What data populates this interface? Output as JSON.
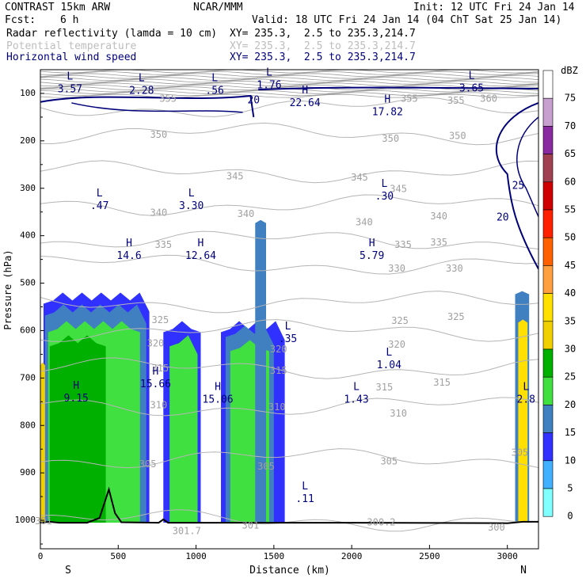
{
  "header": {
    "title": "CONTRAST 15km ARW",
    "center": "NCAR/MMM",
    "init": "Init: 12 UTC Fri 24 Jan 14",
    "fcst_label": "Fcst:",
    "fcst_value": "6 h",
    "valid": "Valid: 18 UTC Fri 24 Jan 14 (04 ChT Sat 25 Jan 14)",
    "fields": [
      {
        "name": "Radar reflectivity (lamda = 10 cm)",
        "xy": "XY= 235.3,  2.5 to 235.3,214.7",
        "color": "#000000"
      },
      {
        "name": "Potential temperature",
        "xy": "XY= 235.3,  2.5 to 235.3,214.7",
        "color": "#bdbdbd"
      },
      {
        "name": "Horizontal wind speed",
        "xy": "XY= 235.3,  2.5 to 235.3,214.7",
        "color": "#00007a"
      }
    ]
  },
  "chart_data": {
    "type": "cross-section",
    "xlabel": "Distance (km)",
    "ylabel": "Pressure (hPa)",
    "xlim": [
      0,
      3200
    ],
    "ylim": [
      1060,
      50
    ],
    "xticks": [
      0,
      500,
      1000,
      1500,
      2000,
      2500,
      3000
    ],
    "yticks": [
      100,
      200,
      300,
      400,
      500,
      600,
      700,
      800,
      900,
      1000
    ],
    "x_end_labels": {
      "left": "S",
      "right": "N"
    },
    "colorbar": {
      "unit": "dBZ",
      "levels": [
        75,
        70,
        65,
        60,
        55,
        50,
        45,
        40,
        35,
        30,
        25,
        20,
        15,
        10,
        5,
        0
      ],
      "colors": [
        "#ffffff",
        "#c8a0d0",
        "#8a2aa0",
        "#a04050",
        "#d00000",
        "#ff2000",
        "#ff6000",
        "#ffa040",
        "#ffe000",
        "#f0d000",
        "#00b000",
        "#40e040",
        "#4080c0",
        "#3030ff",
        "#40b0ff",
        "#80ffff"
      ]
    },
    "theta_contours": [
      {
        "value": "355",
        "p": 130
      },
      {
        "value": "350",
        "p": 185
      },
      {
        "value": "345",
        "p": 265
      },
      {
        "value": "340",
        "p": 335
      },
      {
        "value": "335",
        "p": 410
      },
      {
        "value": "330",
        "p": 460
      },
      {
        "value": "325",
        "p": 540
      },
      {
        "value": "320",
        "p": 600
      },
      {
        "value": "315",
        "p": 680
      },
      {
        "value": "310",
        "p": 760
      },
      {
        "value": "305",
        "p": 870
      },
      {
        "value": "300",
        "p": 1000
      }
    ],
    "theta_labels": [
      {
        "text": "355",
        "x": 820,
        "p": 112
      },
      {
        "text": "355",
        "x": 2370,
        "p": 112
      },
      {
        "text": "355",
        "x": 2670,
        "p": 116
      },
      {
        "text": "360",
        "x": 2880,
        "p": 112
      },
      {
        "text": "350",
        "x": 760,
        "p": 188
      },
      {
        "text": "350",
        "x": 2250,
        "p": 196
      },
      {
        "text": "350",
        "x": 2680,
        "p": 190
      },
      {
        "text": "345",
        "x": 1250,
        "p": 275
      },
      {
        "text": "345",
        "x": 2050,
        "p": 278
      },
      {
        "text": "345",
        "x": 2300,
        "p": 302
      },
      {
        "text": "340",
        "x": 760,
        "p": 352
      },
      {
        "text": "340",
        "x": 1320,
        "p": 355
      },
      {
        "text": "340",
        "x": 2080,
        "p": 372
      },
      {
        "text": "340",
        "x": 2560,
        "p": 360
      },
      {
        "text": "335",
        "x": 790,
        "p": 420
      },
      {
        "text": "335",
        "x": 2330,
        "p": 420
      },
      {
        "text": "335",
        "x": 2560,
        "p": 415
      },
      {
        "text": "330",
        "x": 2290,
        "p": 470
      },
      {
        "text": "330",
        "x": 2660,
        "p": 470
      },
      {
        "text": "325",
        "x": 770,
        "p": 578
      },
      {
        "text": "325",
        "x": 2310,
        "p": 580
      },
      {
        "text": "325",
        "x": 2670,
        "p": 572
      },
      {
        "text": "320",
        "x": 740,
        "p": 628
      },
      {
        "text": "320",
        "x": 1530,
        "p": 640
      },
      {
        "text": "320",
        "x": 2290,
        "p": 630
      },
      {
        "text": "315",
        "x": 770,
        "p": 680
      },
      {
        "text": "315",
        "x": 1530,
        "p": 685
      },
      {
        "text": "315",
        "x": 2210,
        "p": 720
      },
      {
        "text": "315",
        "x": 2580,
        "p": 710
      },
      {
        "text": "310",
        "x": 760,
        "p": 758
      },
      {
        "text": "310",
        "x": 1520,
        "p": 762
      },
      {
        "text": "310",
        "x": 2300,
        "p": 775
      },
      {
        "text": "305",
        "x": 690,
        "p": 882
      },
      {
        "text": "305",
        "x": 1450,
        "p": 887
      },
      {
        "text": "305",
        "x": 2240,
        "p": 876
      },
      {
        "text": "305",
        "x": 3080,
        "p": 858
      },
      {
        "text": "301.7",
        "x": 940,
        "p": 1023
      },
      {
        "text": "301",
        "x": 1350,
        "p": 1012
      },
      {
        "text": "300.2",
        "x": 2190,
        "p": 1005
      },
      {
        "text": "300",
        "x": 2930,
        "p": 1016
      },
      {
        "text": "301",
        "x": 20,
        "p": 1002
      }
    ],
    "wind_contours": [
      {
        "value": "20"
      },
      {
        "value": "25"
      }
    ],
    "wind_labels": [
      {
        "text": "20",
        "x": 1370,
        "p": 115
      },
      {
        "text": "20",
        "x": 2970,
        "p": 362
      },
      {
        "text": "25",
        "x": 3070,
        "p": 295
      }
    ],
    "extrema": [
      {
        "kind": "L",
        "value": "3.57",
        "x": 190,
        "p": 78
      },
      {
        "kind": "L",
        "value": "2.28",
        "x": 650,
        "p": 82
      },
      {
        "kind": "L",
        "value": ".56",
        "x": 1120,
        "p": 82
      },
      {
        "kind": "L",
        "value": "1.76",
        "x": 1470,
        "p": 70
      },
      {
        "kind": "L",
        "value": "3.65",
        "x": 2770,
        "p": 77
      },
      {
        "kind": "H",
        "value": "22.64",
        "x": 1700,
        "p": 108
      },
      {
        "kind": "H",
        "value": "17.82",
        "x": 2230,
        "p": 127
      },
      {
        "kind": "L",
        "value": ".47",
        "x": 380,
        "p": 325
      },
      {
        "kind": "L",
        "value": "3.30",
        "x": 970,
        "p": 325
      },
      {
        "kind": "L",
        "value": ".30",
        "x": 2210,
        "p": 305
      },
      {
        "kind": "H",
        "value": "14.6",
        "x": 570,
        "p": 430
      },
      {
        "kind": "H",
        "value": "12.64",
        "x": 1030,
        "p": 430
      },
      {
        "kind": "H",
        "value": "5.79",
        "x": 2130,
        "p": 430
      },
      {
        "kind": "L",
        "value": ".35",
        "x": 1590,
        "p": 605
      },
      {
        "kind": "L",
        "value": "1.04",
        "x": 2240,
        "p": 660
      },
      {
        "kind": "H",
        "value": "15.66",
        "x": 740,
        "p": 700
      },
      {
        "kind": "H",
        "value": "9.15",
        "x": 230,
        "p": 730
      },
      {
        "kind": "H",
        "value": "15.06",
        "x": 1140,
        "p": 733
      },
      {
        "kind": "L",
        "value": "1.43",
        "x": 2030,
        "p": 733
      },
      {
        "kind": "L",
        "value": "2.8",
        "x": 3120,
        "p": 733
      },
      {
        "kind": "L",
        "value": ".11",
        "x": 1700,
        "p": 942
      }
    ],
    "reflectivity_regions": [
      {
        "x0": 20,
        "x1": 700,
        "ptop": 520,
        "dbz": 10
      },
      {
        "x0": 30,
        "x1": 680,
        "ptop": 545,
        "dbz": 15
      },
      {
        "x0": 50,
        "x1": 640,
        "ptop": 580,
        "dbz": 20
      },
      {
        "x0": 60,
        "x1": 420,
        "ptop": 610,
        "dbz": 25
      },
      {
        "x0": 790,
        "x1": 1030,
        "ptop": 580,
        "dbz": 10
      },
      {
        "x0": 830,
        "x1": 1010,
        "ptop": 610,
        "dbz": 20
      },
      {
        "x0": 1160,
        "x1": 1570,
        "ptop": 580,
        "dbz": 10
      },
      {
        "x0": 1190,
        "x1": 1500,
        "ptop": 590,
        "dbz": 15
      },
      {
        "x0": 1220,
        "x1": 1470,
        "ptop": 620,
        "dbz": 20
      },
      {
        "x0": 1380,
        "x1": 1450,
        "ptop": 350,
        "dbz": 15
      },
      {
        "x0": 3050,
        "x1": 3140,
        "ptop": 500,
        "dbz": 15
      },
      {
        "x0": 3070,
        "x1": 3130,
        "ptop": 560,
        "dbz": 35
      },
      {
        "x0": 0,
        "x1": 30,
        "ptop": 650,
        "dbz": 30
      }
    ],
    "terrain": [
      {
        "x": 0,
        "p": 1005
      },
      {
        "x": 60,
        "p": 1003
      },
      {
        "x": 120,
        "p": 1005
      },
      {
        "x": 300,
        "p": 1005
      },
      {
        "x": 380,
        "p": 995
      },
      {
        "x": 440,
        "p": 935
      },
      {
        "x": 480,
        "p": 985
      },
      {
        "x": 520,
        "p": 1004
      },
      {
        "x": 760,
        "p": 1005
      },
      {
        "x": 790,
        "p": 998
      },
      {
        "x": 820,
        "p": 1005
      },
      {
        "x": 2000,
        "p": 1005
      },
      {
        "x": 3000,
        "p": 1006
      },
      {
        "x": 3100,
        "p": 1003
      },
      {
        "x": 3200,
        "p": 1003
      }
    ]
  }
}
